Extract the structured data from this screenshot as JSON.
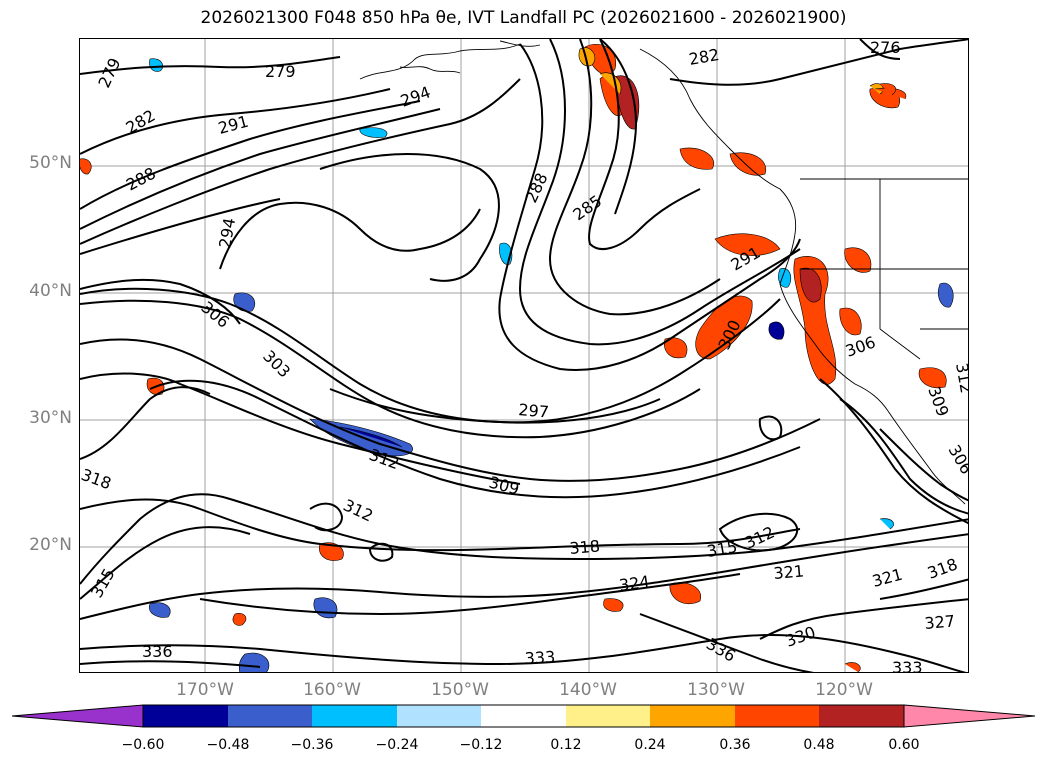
{
  "title": "2026021300 F048 850 hPa θe, IVT Landfall PC (2026021600 - 2026021900)",
  "axes": {
    "lat_labels": [
      "50°N",
      "40°N",
      "30°N",
      "20°N"
    ],
    "lon_labels": [
      "170°W",
      "160°W",
      "150°W",
      "140°W",
      "130°W",
      "120°W"
    ]
  },
  "colorbar": {
    "ticks": [
      "−0.60",
      "−0.48",
      "−0.36",
      "−0.24",
      "−0.12",
      "0.12",
      "0.24",
      "0.36",
      "0.48",
      "0.60"
    ],
    "levels": [
      -0.6,
      -0.48,
      -0.36,
      -0.24,
      -0.12,
      0.12,
      0.24,
      0.36,
      0.48,
      0.6
    ],
    "colors": {
      "under": "#9932cc",
      "bins": [
        "#000099",
        "#3a5fcd",
        "#00bfff",
        "#b0e2ff",
        "#ffffff",
        "#fff08a",
        "#ffa500",
        "#ff4500",
        "#b22222"
      ],
      "over": "#ff88aa"
    }
  },
  "contour_labels": [
    "279",
    "282",
    "288",
    "291",
    "294",
    "276",
    "282",
    "279",
    "294",
    "288",
    "285",
    "291",
    "306",
    "303",
    "300",
    "306",
    "297",
    "312",
    "318",
    "309",
    "312",
    "318",
    "315",
    "312",
    "321",
    "324",
    "315",
    "321",
    "318",
    "327",
    "336",
    "333",
    "336",
    "330",
    "333",
    "309",
    "306",
    "312"
  ]
}
